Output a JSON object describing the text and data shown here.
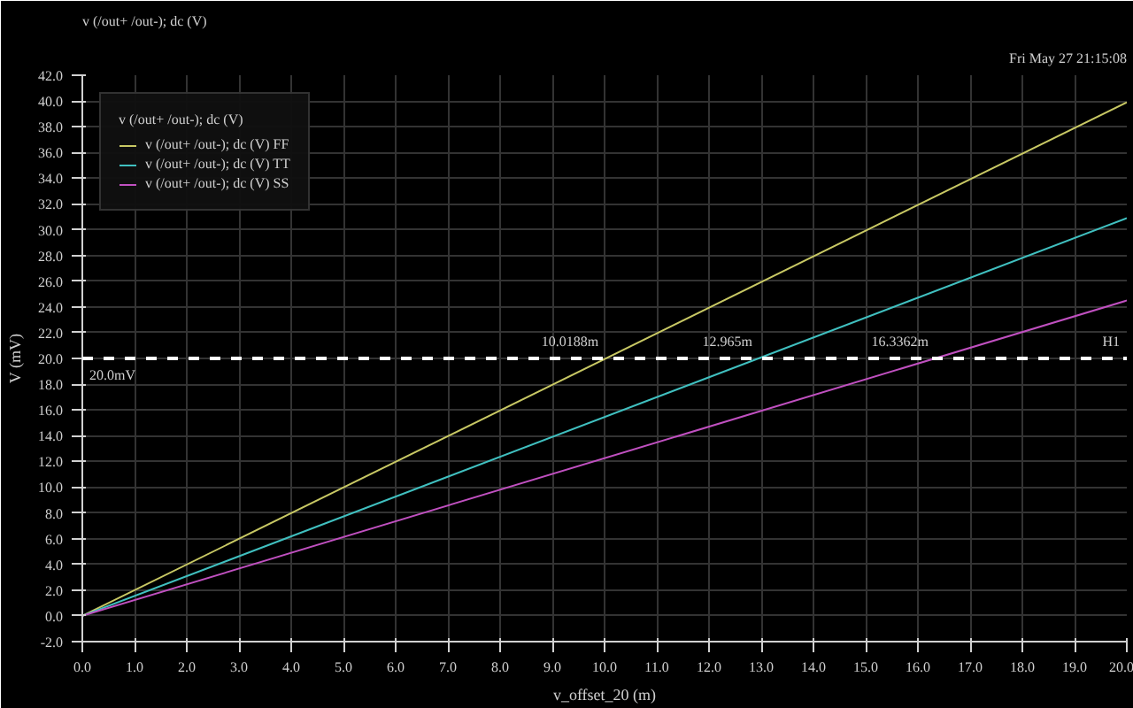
{
  "chart_data": {
    "type": "line",
    "title": "v (/out+ /out-); dc (V)",
    "xlabel": "v_offset_20 (m)",
    "ylabel": "V (mV)",
    "legend_title": "v (/out+ /out-); dc (V)",
    "x": [
      0,
      20
    ],
    "series": [
      {
        "name": "v (/out+ /out-); dc (V) FF",
        "color": "#c8c864",
        "values": [
          0,
          39.9
        ]
      },
      {
        "name": "v (/out+ /out-); dc (V) TT",
        "color": "#40c0c0",
        "values": [
          0,
          30.9
        ]
      },
      {
        "name": "v (/out+ /out-); dc (V) SS",
        "color": "#c050c0",
        "values": [
          0,
          24.5
        ]
      }
    ],
    "xlim": [
      0,
      20
    ],
    "ylim": [
      -2,
      42
    ],
    "xticks": [
      {
        "value": 0,
        "label": "0.0"
      },
      {
        "value": 1,
        "label": "1.0"
      },
      {
        "value": 2,
        "label": "2.0"
      },
      {
        "value": 3,
        "label": "3.0"
      },
      {
        "value": 4,
        "label": "4.0"
      },
      {
        "value": 5,
        "label": "5.0"
      },
      {
        "value": 6,
        "label": "6.0"
      },
      {
        "value": 7,
        "label": "7.0"
      },
      {
        "value": 8,
        "label": "8.0"
      },
      {
        "value": 9,
        "label": "9.0"
      },
      {
        "value": 10,
        "label": "10.0"
      },
      {
        "value": 11,
        "label": "11.0"
      },
      {
        "value": 12,
        "label": "12.0"
      },
      {
        "value": 13,
        "label": "13.0"
      },
      {
        "value": 14,
        "label": "14.0"
      },
      {
        "value": 15,
        "label": "15.0"
      },
      {
        "value": 16,
        "label": "16.0"
      },
      {
        "value": 17,
        "label": "17.0"
      },
      {
        "value": 18,
        "label": "18.0"
      },
      {
        "value": 19,
        "label": "19.0"
      },
      {
        "value": 20,
        "label": "20.0"
      }
    ],
    "yticks": [
      {
        "value": -2,
        "label": "-2.0"
      },
      {
        "value": 0,
        "label": "0.0"
      },
      {
        "value": 2,
        "label": "2.0"
      },
      {
        "value": 4,
        "label": "4.0"
      },
      {
        "value": 6,
        "label": "6.0"
      },
      {
        "value": 8,
        "label": "8.0"
      },
      {
        "value": 10,
        "label": "10.0"
      },
      {
        "value": 12,
        "label": "12.0"
      },
      {
        "value": 14,
        "label": "14.0"
      },
      {
        "value": 16,
        "label": "16.0"
      },
      {
        "value": 18,
        "label": "18.0"
      },
      {
        "value": 20,
        "label": "20.0"
      },
      {
        "value": 22,
        "label": "22.0"
      },
      {
        "value": 24,
        "label": "24.0"
      },
      {
        "value": 26,
        "label": "26.0"
      },
      {
        "value": 28,
        "label": "28.0"
      },
      {
        "value": 30,
        "label": "30.0"
      },
      {
        "value": 32,
        "label": "32.0"
      },
      {
        "value": 34,
        "label": "34.0"
      },
      {
        "value": 36,
        "label": "36.0"
      },
      {
        "value": 38,
        "label": "38.0"
      },
      {
        "value": 40,
        "label": "40.0"
      },
      {
        "value": 42,
        "label": "42.0"
      }
    ],
    "ref_lines": [
      {
        "axis": "y",
        "value": 20,
        "label": "20.0mV",
        "color": "#ffffff",
        "line_style": "dashed"
      }
    ],
    "annotations": [
      "Fri May 27 21:15:08",
      {
        "text": "10.0188m",
        "x": 10.0188,
        "y": 20
      },
      {
        "text": "12.965m",
        "x": 12.965,
        "y": 20
      },
      {
        "text": "16.3362m",
        "x": 16.3362,
        "y": 20
      },
      {
        "text": "H1",
        "x": 20,
        "y": 20
      }
    ],
    "grid": true,
    "legend": "top left",
    "marker": "none",
    "line_style": "solid"
  }
}
